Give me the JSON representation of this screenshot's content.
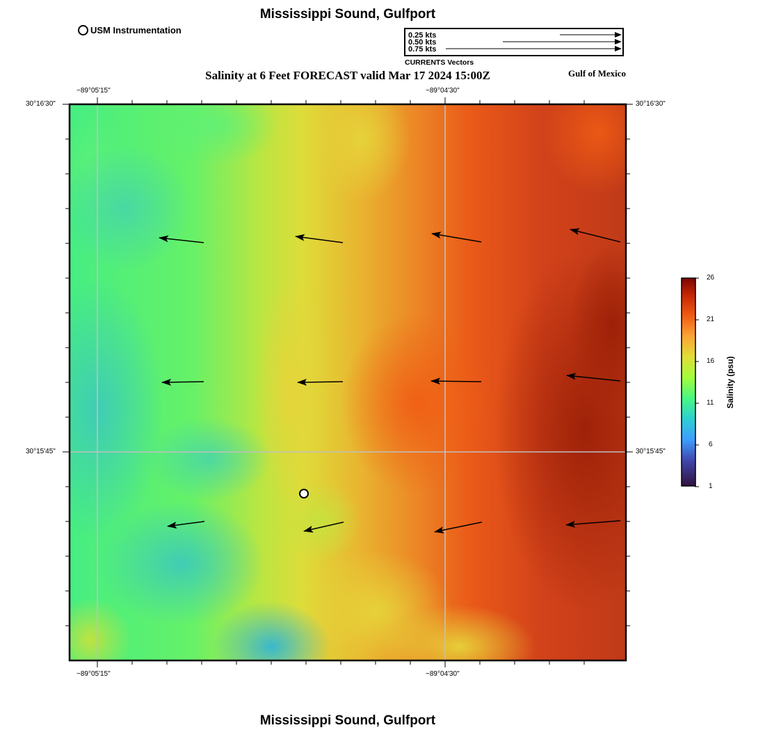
{
  "header": {
    "title": "Mississippi Sound, Gulfport",
    "subtitle": "Salinity at 6 Feet FORECAST valid Mar 17 2024 15:00Z",
    "region_label": "Gulf of Mexico",
    "footer_title": "Mississippi Sound, Gulfport"
  },
  "legend": {
    "station_label": "USM Instrumentation",
    "vector_scale": [
      {
        "label": "0.25 kts",
        "knots": 0.25
      },
      {
        "label": "0.50 kts",
        "knots": 0.5
      },
      {
        "label": "0.75 kts",
        "knots": 0.75
      }
    ],
    "vector_caption": "CURRENTS Vectors"
  },
  "map": {
    "longitude_labels": [
      "−89°05'15\"",
      "−89°04'30\""
    ],
    "latitude_labels": [
      "30°16'30\"",
      "30°15'45\""
    ],
    "station_symbol": "open-circle",
    "colors": {
      "gridline": "#c0c0c0",
      "frame": "#000000",
      "arrow": "#000000"
    },
    "currents": [
      {
        "row": 0,
        "col": 0,
        "speed_kts": 0.33,
        "dir": "west-northwest"
      },
      {
        "row": 0,
        "col": 1,
        "speed_kts": 0.34,
        "dir": "west-northwest"
      },
      {
        "row": 0,
        "col": 2,
        "speed_kts": 0.36,
        "dir": "west-northwest"
      },
      {
        "row": 0,
        "col": 3,
        "speed_kts": 0.37,
        "dir": "west-northwest"
      },
      {
        "row": 1,
        "col": 0,
        "speed_kts": 0.3,
        "dir": "west"
      },
      {
        "row": 1,
        "col": 1,
        "speed_kts": 0.33,
        "dir": "west"
      },
      {
        "row": 1,
        "col": 2,
        "speed_kts": 0.36,
        "dir": "west"
      },
      {
        "row": 1,
        "col": 3,
        "speed_kts": 0.39,
        "dir": "west-northwest"
      },
      {
        "row": 2,
        "col": 0,
        "speed_kts": 0.27,
        "dir": "west-southwest"
      },
      {
        "row": 2,
        "col": 1,
        "speed_kts": 0.3,
        "dir": "west-southwest"
      },
      {
        "row": 2,
        "col": 2,
        "speed_kts": 0.35,
        "dir": "west-southwest"
      },
      {
        "row": 2,
        "col": 3,
        "speed_kts": 0.39,
        "dir": "west-southwest"
      }
    ]
  },
  "colorbar": {
    "title": "Salinity (psu)",
    "ticks": [
      "26",
      "21",
      "16",
      "11",
      "6",
      "1"
    ],
    "min": 1,
    "max": 26,
    "stops": [
      "#30123b",
      "#3e9bfe",
      "#46f884",
      "#e1dd37",
      "#f05b12",
      "#7a0403"
    ]
  }
}
